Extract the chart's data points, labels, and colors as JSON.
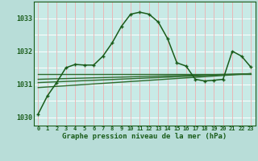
{
  "title": "Graphe pression niveau de la mer (hPa)",
  "background_color": "#b8ddd8",
  "plot_bg_color": "#c8eae6",
  "grid_color_h": "#ffffff",
  "grid_color_v": "#e8b8b8",
  "line_color_main": "#1a5c1a",
  "line_color_flat": "#2d6b2d",
  "xlim": [
    -0.5,
    23.5
  ],
  "ylim": [
    1029.75,
    1033.5
  ],
  "yticks": [
    1030,
    1031,
    1032,
    1033
  ],
  "main_line_x": [
    0,
    1,
    2,
    3,
    4,
    5,
    6,
    7,
    8,
    9,
    10,
    11,
    12,
    13,
    14,
    15,
    16,
    17,
    18,
    19,
    20,
    21,
    22,
    23
  ],
  "main_line_y": [
    1030.1,
    1030.65,
    1031.05,
    1031.5,
    1031.6,
    1031.58,
    1031.58,
    1031.85,
    1032.25,
    1032.75,
    1033.12,
    1033.18,
    1033.12,
    1032.88,
    1032.38,
    1031.65,
    1031.55,
    1031.15,
    1031.1,
    1031.12,
    1031.15,
    1032.0,
    1031.85,
    1031.52
  ],
  "flat_line_x": [
    0,
    23
  ],
  "flat_line_y": [
    1031.3,
    1031.3
  ],
  "trend_line1_x": [
    0,
    23
  ],
  "trend_line1_y": [
    1031.15,
    1031.32
  ],
  "trend_line2_x": [
    0,
    23
  ],
  "trend_line2_y": [
    1031.05,
    1031.32
  ],
  "trend_line3_x": [
    0,
    23
  ],
  "trend_line3_y": [
    1030.9,
    1031.32
  ]
}
